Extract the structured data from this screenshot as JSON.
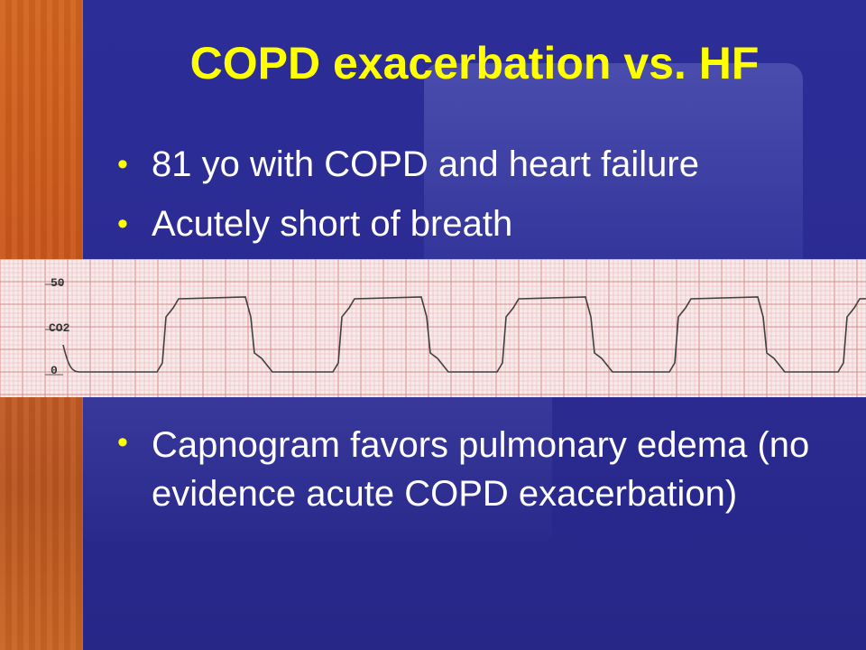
{
  "slide": {
    "title": "COPD exacerbation vs. HF",
    "bullets_top": [
      "81 yo with COPD and heart failure",
      "Acutely short of breath"
    ],
    "bullets_bottom": [
      "Capnogram favors pulmonary edema (no evidence acute COPD exacerbation)"
    ]
  },
  "capnogram": {
    "scale_labels": {
      "top": "50",
      "middle": "CO2",
      "bottom": "0"
    },
    "colors": {
      "grid_minor": "#eab3b3",
      "grid_major": "#d98a8a",
      "trace": "#404040"
    }
  },
  "theme": {
    "background": "#2a2a8c",
    "title_color": "#ffff00",
    "text_color": "#ffffff",
    "bullet_color": "#ffff00",
    "left_strip": "#c9561a"
  }
}
